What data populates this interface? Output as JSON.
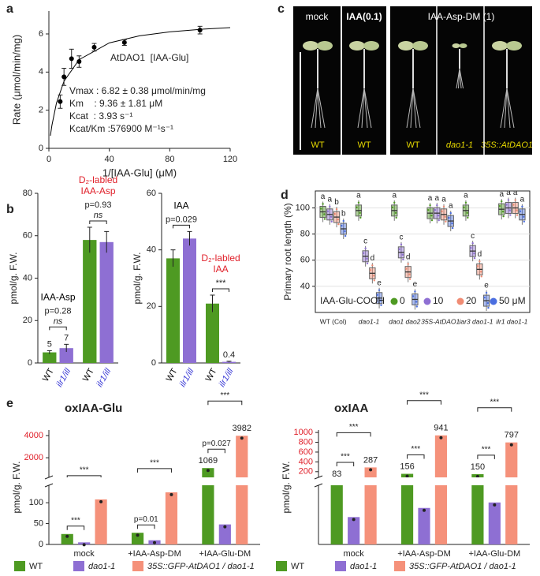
{
  "panel_labels": [
    "a",
    "b",
    "c",
    "d",
    "e"
  ],
  "photo": {
    "top_labels": [
      "mock",
      "IAA(0.1)",
      "IAA-Asp-DM (1)"
    ],
    "bottom_labels": [
      "WT",
      "WT",
      "WT",
      "dao1-1",
      "35S::AtDAO1"
    ]
  },
  "chart_data": [
    {
      "type": "scatter",
      "x": [
        7.5,
        10,
        15,
        20,
        30,
        50,
        100
      ],
      "values": [
        2.45,
        3.75,
        4.7,
        4.55,
        5.3,
        5.55,
        6.2
      ],
      "errors": [
        0.35,
        0.45,
        0.5,
        0.3,
        0.2,
        0.15,
        0.2
      ],
      "fit": {
        "x": [
          1,
          2,
          5,
          10,
          20,
          40,
          60,
          80,
          100,
          120
        ],
        "values": [
          0.66,
          1.2,
          2.37,
          3.52,
          4.65,
          5.53,
          5.9,
          6.11,
          6.24,
          6.33
        ]
      },
      "xlim": [
        0,
        120
      ],
      "xticks": [
        0,
        40,
        80,
        120
      ],
      "ylim": [
        0,
        7.2
      ],
      "yticks": [
        0,
        2,
        4,
        6
      ],
      "xlabel": "1/[IAA-Glu] (μM)",
      "ylabel": "Rate (μmol/min/mg)",
      "annotations": [
        "AtDAO1  [IAA-Glu]",
        "Vmax : 6.82 ± 0.38 μmol/min/mg",
        "Km    : 9.36 ± 1.81 μM",
        "Kcat  : 3.93 s⁻¹",
        "Kcat/Km :576900 M⁻¹s⁻¹"
      ],
      "color": "#000000"
    },
    {
      "type": "bar",
      "ylabel": "pmol/g. F.W.",
      "ylim": [
        0,
        80
      ],
      "yticks": [
        0,
        20,
        40,
        60,
        80
      ],
      "colors": [
        "#4e9a22",
        "#8e6fd3"
      ],
      "label_colors": [
        "#000000",
        "#3b3bd6"
      ],
      "groups": [
        {
          "name_lines": [
            "IAA-Asp"
          ],
          "name_color": "#000000",
          "categories": [
            "WT",
            "ilr1/ill"
          ],
          "values": [
            5,
            7
          ],
          "errors": [
            0.8,
            1.8
          ],
          "value_labels": [
            "5",
            "7"
          ],
          "p": [
            "p=0.28",
            "ns"
          ]
        },
        {
          "name_lines": [
            "D₂-labled",
            "IAA-Asp"
          ],
          "name_color": "#e0202a",
          "categories": [
            "WT",
            "ilr1/ill"
          ],
          "values": [
            58,
            57
          ],
          "errors": [
            6,
            5
          ],
          "p": [
            "p=0.93",
            "ns"
          ]
        }
      ]
    },
    {
      "type": "bar",
      "ylabel": "pmol/g. F.W.",
      "ylim": [
        0,
        60
      ],
      "yticks": [
        0,
        20,
        40,
        60
      ],
      "colors": [
        "#4e9a22",
        "#8e6fd3"
      ],
      "label_colors": [
        "#000000",
        "#3b3bd6"
      ],
      "groups": [
        {
          "name_lines": [
            "IAA"
          ],
          "name_color": "#000000",
          "categories": [
            "WT",
            "ilr1/ill"
          ],
          "values": [
            37,
            44
          ],
          "errors": [
            3,
            2.5
          ],
          "p": [
            "p=0.029"
          ]
        },
        {
          "name_lines": [
            "D₂-labled",
            "IAA"
          ],
          "name_color": "#e0202a",
          "categories": [
            "WT",
            "ilr1/ill"
          ],
          "values": [
            21,
            0.4
          ],
          "errors": [
            3,
            0.2
          ],
          "value_labels": [
            null,
            "0.4"
          ],
          "p": [
            "***"
          ]
        }
      ]
    },
    {
      "type": "box",
      "ylabel": "Primary root length (%)",
      "ylim": [
        20,
        113
      ],
      "yticks": [
        40,
        60,
        80,
        100
      ],
      "categories": [
        "WT (Col)",
        "dao1-1",
        "dao1 dao2",
        "35S-AtDAO1",
        "iar3 dao1-1",
        "ilr1 dao1-1"
      ],
      "legend_title": "IAA-Glu-COOH",
      "series": [
        {
          "name": "0",
          "color": "#4e9a22",
          "values": [
            97,
            98,
            98,
            96,
            98,
            99
          ],
          "letters": [
            "a",
            "a",
            "a",
            "a",
            "a",
            "a"
          ]
        },
        {
          "name": "10",
          "color": "#8e6fd3",
          "values": [
            95,
            63,
            66,
            96,
            67,
            100
          ],
          "letters": [
            "a",
            "c",
            "c",
            "a",
            "c",
            "a"
          ]
        },
        {
          "name": "20",
          "color": "#f08c74",
          "values": [
            93,
            50,
            51,
            95,
            53,
            100
          ],
          "letters": [
            "b",
            "d",
            "d",
            "a",
            "d",
            "a"
          ]
        },
        {
          "name": "50 μM",
          "color": "#4a6ee0",
          "values": [
            84,
            31,
            30,
            90,
            29,
            95
          ],
          "letters": [
            "b",
            "e",
            "e",
            "a",
            "e",
            "a"
          ]
        }
      ]
    },
    {
      "type": "broken_bar",
      "title": "oxIAA-Glu",
      "ylabel": "pmol/g. F.W.",
      "categories": [
        "mock",
        "+IAA-Asp-DM",
        "+IAA-Glu-DM"
      ],
      "segments": [
        {
          "ylim": [
            0,
            140
          ],
          "yticks": [
            0,
            50,
            100
          ],
          "tick_color": "#222222"
        },
        {
          "ylim": [
            300,
            4500
          ],
          "yticks": [
            2000,
            4000
          ],
          "tick_color": "#e0202a"
        }
      ],
      "series": [
        {
          "name": "WT",
          "color": "#4e9a22",
          "values": [
            25,
            28,
            1069
          ],
          "value_labels": [
            null,
            null,
            "1069"
          ]
        },
        {
          "name": "dao1-1",
          "color": "#8e6fd3",
          "values": [
            5,
            10,
            48
          ]
        },
        {
          "name": "35S::GFP-AtDAO1 / dao1-1",
          "color": "#f5917a",
          "values": [
            108,
            125,
            3982
          ],
          "value_labels": [
            null,
            null,
            "3982"
          ]
        }
      ],
      "comparisons": [
        [
          "***",
          "***"
        ],
        [
          "p=0.01",
          "***"
        ],
        [
          "p=0.027",
          "***"
        ]
      ]
    },
    {
      "type": "broken_bar",
      "title": "oxIAA",
      "ylabel": "pmol/g. F.W.",
      "categories": [
        "mock",
        "+IAA-Asp-DM",
        "+IAA-Glu-DM"
      ],
      "segments": [
        {
          "ylim": [
            0,
            32
          ]
        },
        {
          "ylim": [
            100,
            1050
          ],
          "yticks": [
            200,
            400,
            600,
            800,
            1000
          ],
          "tick_color": "#e0202a"
        }
      ],
      "series": [
        {
          "name": "WT",
          "color": "#4e9a22",
          "values": [
            83,
            156,
            150
          ],
          "value_labels": [
            "83",
            "156",
            "150"
          ]
        },
        {
          "name": "dao1-1",
          "color": "#8e6fd3",
          "values": [
            15,
            20,
            23
          ]
        },
        {
          "name": "35S::GFP-AtDAO1 / dao1-1",
          "color": "#f5917a",
          "values": [
            287,
            941,
            797
          ],
          "value_labels": [
            "287",
            "941",
            "797"
          ]
        }
      ],
      "comparisons": [
        [
          "***",
          "***"
        ],
        [
          "***",
          "***"
        ],
        [
          "***",
          "***"
        ]
      ]
    }
  ]
}
